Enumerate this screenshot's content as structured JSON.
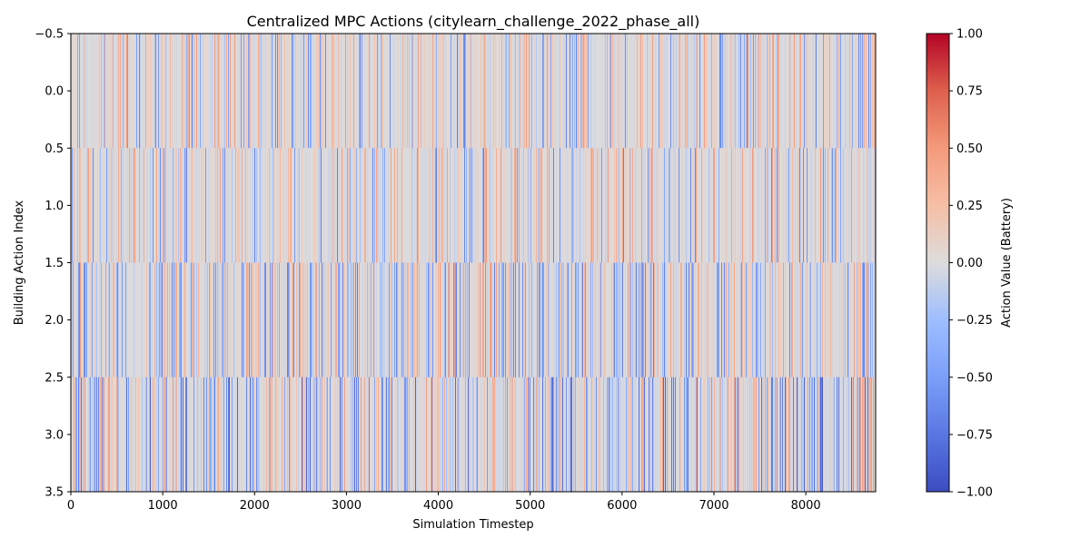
{
  "chart_data": {
    "type": "heatmap",
    "title": "Centralized MPC Actions (citylearn_challenge_2022_phase_all)",
    "xlabel": "Simulation Timestep",
    "ylabel": "Building Action Index",
    "colorbar_label": "Action Value (Battery)",
    "colormap": "coolwarm",
    "x_range": [
      0,
      8759
    ],
    "xlim": [
      0,
      8760
    ],
    "ylim": [
      3.5,
      -0.5
    ],
    "rows": [
      0,
      1,
      2,
      3
    ],
    "x_ticks": [
      "0",
      "1000",
      "2000",
      "3000",
      "4000",
      "5000",
      "6000",
      "7000",
      "8000"
    ],
    "x_tick_values": [
      0,
      1000,
      2000,
      3000,
      4000,
      5000,
      6000,
      7000,
      8000
    ],
    "y_ticks": [
      "−0.5",
      "0.0",
      "0.5",
      "1.0",
      "1.5",
      "2.0",
      "2.5",
      "3.0",
      "3.5"
    ],
    "y_tick_values": [
      -0.5,
      0,
      0.5,
      1,
      1.5,
      2,
      2.5,
      3,
      3.5
    ],
    "colorbar_ticks": [
      "1.00",
      "0.75",
      "0.50",
      "0.25",
      "0.00",
      "−0.25",
      "−0.50",
      "−0.75",
      "−1.00"
    ],
    "colorbar_tick_values": [
      1,
      0.75,
      0.5,
      0.25,
      0,
      -0.25,
      -0.5,
      -0.75,
      -1
    ],
    "value_range": [
      -1.0,
      1.0
    ],
    "grid": false,
    "values_note": "Values are dense (4 rows x 8760 timesteps), near zero with sparse positive and negative spikes in the range -1 to 1."
  }
}
